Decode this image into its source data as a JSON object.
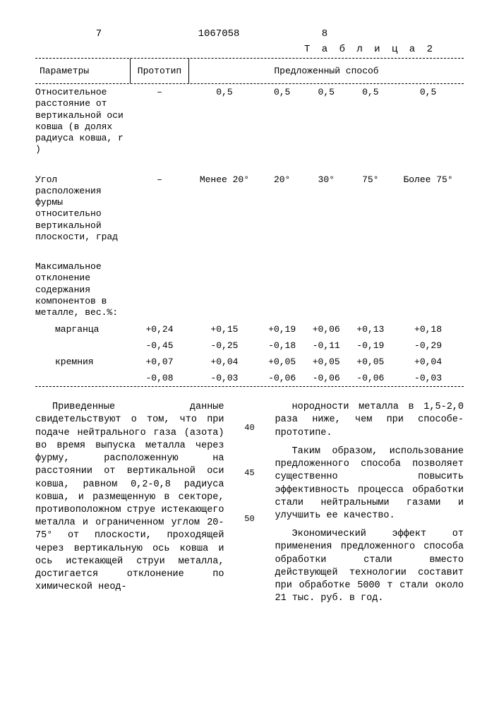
{
  "page": {
    "num_left": "7",
    "doc_number": "1067058",
    "num_right": "8",
    "table_label": "Т а б л и ц а  2"
  },
  "table": {
    "header": {
      "params": "Параметры",
      "proto": "Прототип",
      "method": "Предложенный способ"
    },
    "rows": [
      {
        "label": "Относительное расстояние от вертикальной оси ковша (в долях радиуса ковша, r )",
        "proto": "–",
        "vals": [
          "0,5",
          "0,5",
          "0,5",
          "0,5",
          "0,5"
        ]
      },
      {
        "label": "Угол расположения фурмы относительно вертикальной плоскости, град",
        "proto": "–",
        "vals": [
          "Менее 20°",
          "20°",
          "30°",
          "75°",
          "Более 75°"
        ]
      },
      {
        "label": "Максимальное отклонение содержания компонентов в металле, вес.%:",
        "proto": "",
        "vals": [
          "",
          "",
          "",
          "",
          ""
        ]
      },
      {
        "label": "марганца",
        "indent": true,
        "proto": "+0,24",
        "vals": [
          "+0,15",
          "+0,19",
          "+0,06",
          "+0,13",
          "+0,18"
        ]
      },
      {
        "label": "",
        "proto": "-0,45",
        "vals": [
          "-0,25",
          "-0,18",
          "-0,11",
          "-0,19",
          "-0,29"
        ]
      },
      {
        "label": "кремния",
        "indent": true,
        "proto": "+0,07",
        "vals": [
          "+0,04",
          "+0,05",
          "+0,05",
          "+0,05",
          "+0,04"
        ]
      },
      {
        "label": "",
        "proto": "-0,08",
        "vals": [
          "-0,03",
          "-0,06",
          "-0,06",
          "-0,06",
          "-0,03"
        ]
      }
    ]
  },
  "line_marks": [
    "40",
    "45",
    "50"
  ],
  "body": {
    "left": [
      "Приведенные данные свидетельствуют о том, что при подаче нейтрального газа (азота) во время выпуска металла через фурму, расположенную на расстоянии от вертикальной оси ковша, равном 0,2-0,8 радиуса ковша, и размещенную в секторе, противоположном струе истекающего металла и ограниченном углом 20-75° от плоскости, проходящей через вертикальную ось ковша и ось истекающей струи металла, достигается отклонение по химической неод-"
    ],
    "right": [
      "нородности металла в 1,5-2,0 раза ниже, чем при способе-прототипе.",
      "Таким образом, использование предложенного способа позволяет существенно повысить эффективность процесса обработки стали нейтральными газами и улучшить ее качество.",
      "Экономический эффект от применения предложенного способа обработки стали вместо действующей технологии составит при обработке 5000 т стали около 21 тыс. руб. в год."
    ]
  }
}
